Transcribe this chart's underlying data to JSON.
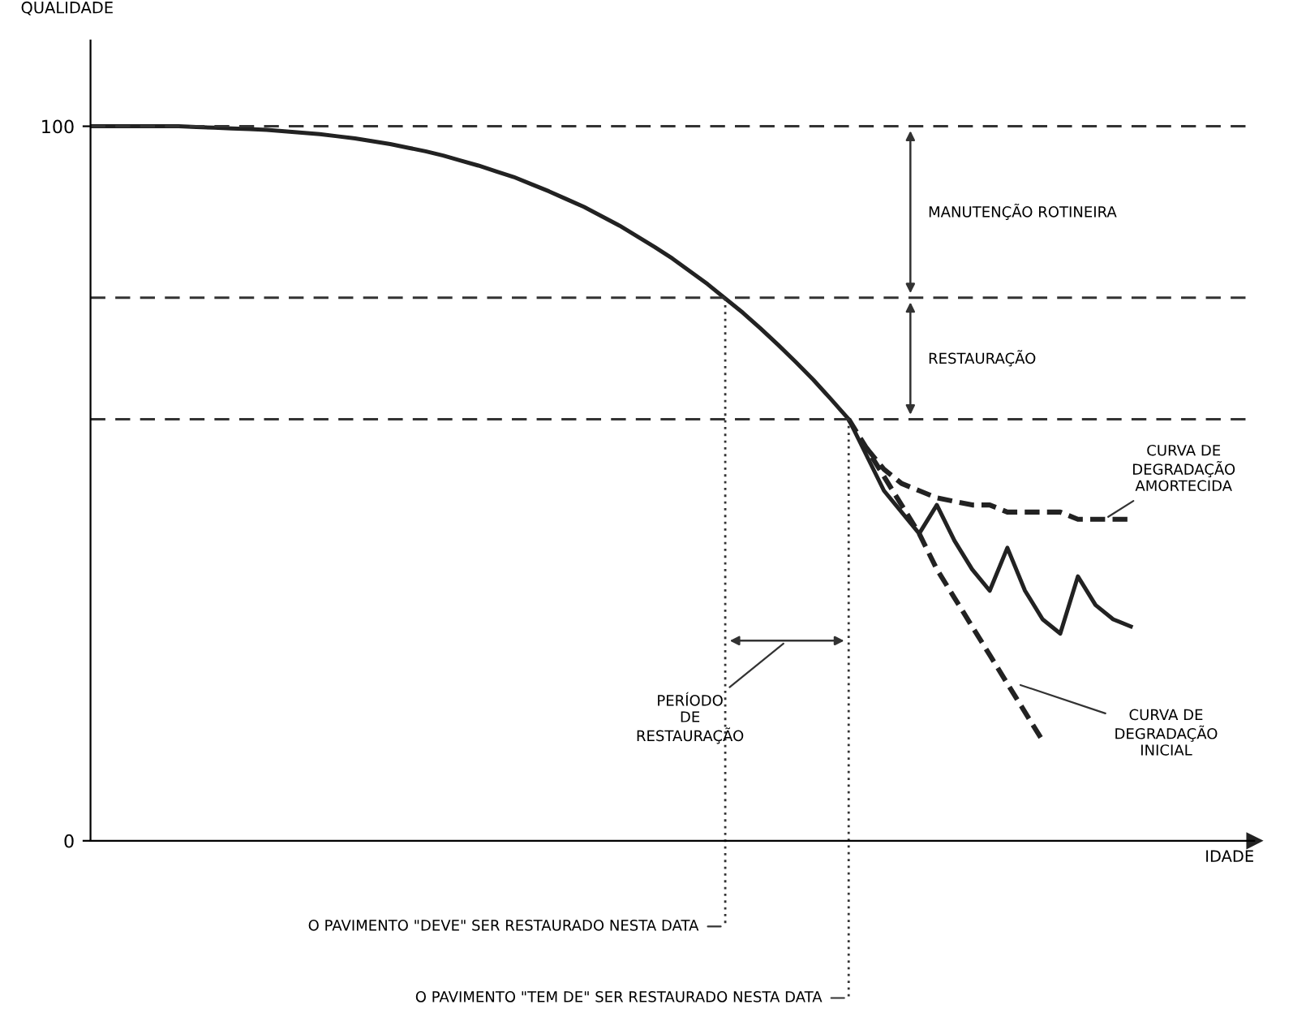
{
  "chart_data": {
    "type": "line",
    "xlabel": "IDADE",
    "ylabel": "QUALIDADE",
    "categories": [
      null,
      null,
      null,
      null,
      null,
      null,
      null,
      null,
      null,
      null,
      null,
      null,
      null,
      null,
      null,
      null,
      null,
      null,
      null,
      null,
      null,
      null,
      null,
      null,
      null,
      null,
      null,
      null,
      null,
      null,
      null,
      null,
      null,
      null,
      null,
      null,
      null,
      null,
      null,
      null,
      null,
      null,
      null,
      null,
      null,
      null,
      null,
      null,
      null,
      null,
      null,
      null,
      null,
      null,
      null,
      null,
      null,
      null,
      null,
      null,
      null
    ],
    "series": [
      {
        "color": "#222222",
        "line_style": "solid",
        "values": [
          100,
          100,
          100,
          100,
          100,
          100,
          99.9,
          99.8,
          99.7,
          99.6,
          99.5,
          99.3,
          99.1,
          98.9,
          98.6,
          98.3,
          97.9,
          97.5,
          97.0,
          96.5,
          95.9,
          95.2,
          94.5,
          93.7,
          92.9,
          91.9,
          90.9,
          89.8,
          88.7,
          87.4,
          86.1,
          84.6,
          83.1,
          81.5,
          79.7,
          77.9,
          75.9,
          73.9,
          71.7,
          69.4,
          67.0,
          64.5,
          61.8,
          59.0,
          54,
          49,
          46,
          43,
          47,
          42,
          38,
          35,
          41,
          35,
          31,
          29,
          37,
          33,
          31,
          30,
          null
        ]
      },
      {
        "color": "#222222",
        "line_style": "dashed",
        "values": [
          null,
          null,
          null,
          null,
          null,
          null,
          null,
          null,
          null,
          null,
          null,
          null,
          null,
          null,
          null,
          null,
          null,
          null,
          null,
          null,
          null,
          null,
          null,
          null,
          null,
          null,
          null,
          null,
          null,
          null,
          null,
          null,
          null,
          null,
          null,
          null,
          null,
          null,
          null,
          null,
          null,
          null,
          null,
          59,
          55,
          51,
          47,
          43,
          38,
          34,
          30,
          26,
          22,
          18,
          14,
          null,
          null,
          null,
          null,
          null,
          null
        ]
      },
      {
        "color": "#222222",
        "line_style": "dashed",
        "values": [
          null,
          null,
          null,
          null,
          null,
          null,
          null,
          null,
          null,
          null,
          null,
          null,
          null,
          null,
          null,
          null,
          null,
          null,
          null,
          null,
          null,
          null,
          null,
          null,
          null,
          null,
          null,
          null,
          null,
          null,
          null,
          null,
          null,
          null,
          null,
          null,
          null,
          null,
          null,
          null,
          null,
          null,
          null,
          null,
          55,
          52,
          50,
          49,
          48,
          47.5,
          47,
          47,
          46,
          46,
          46,
          46,
          45,
          45,
          45,
          45,
          null
        ]
      }
    ],
    "ylim": [
      0,
      112
    ],
    "yticks": [
      0,
      100
    ],
    "tick_labels": "y",
    "grid": false,
    "legend": false,
    "marker": "none",
    "ref_lines": [
      {
        "axis": "y",
        "value": 100,
        "line_style": "dashed"
      },
      {
        "axis": "y",
        "value": 76,
        "line_style": "dashed"
      },
      {
        "axis": "y",
        "value": 59,
        "line_style": "dashed"
      }
    ],
    "annotations": [
      "MANUTENÇÃO ROTINEIRA",
      "RESTAURAÇÃO",
      "PERÍODO\nDE\nRESTAURAÇÃO",
      "CURVA DE\nDEGRADAÇÃO\nAMORTECIDA",
      "CURVA DE\nDEGRADAÇÃO\nINICIAL",
      "O PAVIMENTO \"DEVE\" SER RESTAURADO NESTA DATA",
      "O PAVIMENTO \"TEM DE\" SER RESTAURADO NESTA DATA"
    ]
  }
}
